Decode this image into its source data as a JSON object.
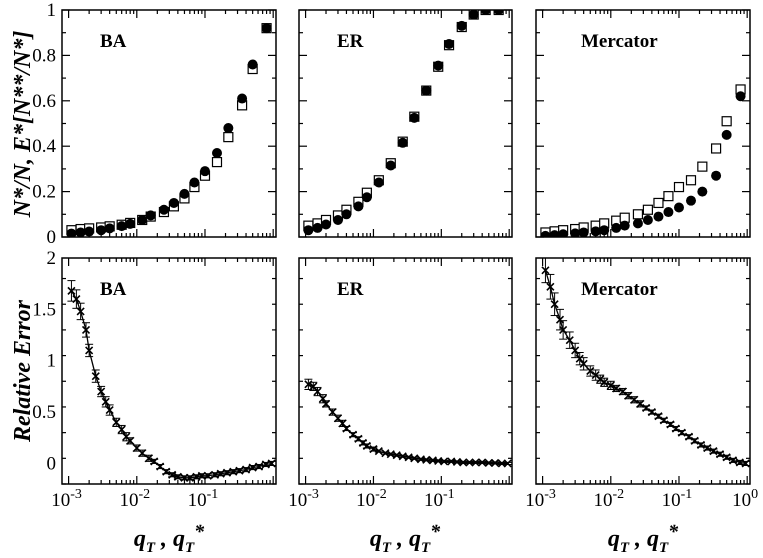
{
  "figure": {
    "xlabel": {
      "base1": "q",
      "sub1": "T",
      "sep": " , ",
      "base2": "q",
      "sub2": "T",
      "sup2": "*"
    },
    "ylabel_top": "N*/N,  E*[N**/N*]",
    "ylabel_bottom": "Relative Error",
    "x_tick_labels": [
      {
        "base": "10",
        "exp": "-3"
      },
      {
        "base": "10",
        "exp": "-2"
      },
      {
        "base": "10",
        "exp": "-1"
      },
      {
        "base": "10",
        "exp": "0"
      }
    ]
  },
  "chart_data": [
    {
      "type": "scatter",
      "panel": "top-BA",
      "title": "BA",
      "xscale": "log",
      "xlim": [
        0.0008,
        1.1
      ],
      "ylim": [
        0,
        1
      ],
      "yticks": [
        0,
        0.2,
        0.4,
        0.6,
        0.8,
        1
      ],
      "ytick_labels": [
        "0",
        "0.2",
        "0.4",
        "0.6",
        "0.8",
        "1"
      ],
      "series": [
        {
          "name": "N*/N",
          "marker": "open-square",
          "x": [
            0.0011,
            0.0015,
            0.002,
            0.003,
            0.004,
            0.006,
            0.008,
            0.012,
            0.016,
            0.025,
            0.035,
            0.05,
            0.07,
            0.1,
            0.15,
            0.22,
            0.35,
            0.5,
            0.8
          ],
          "y": [
            0.03,
            0.035,
            0.038,
            0.042,
            0.047,
            0.054,
            0.062,
            0.075,
            0.09,
            0.11,
            0.135,
            0.17,
            0.22,
            0.27,
            0.33,
            0.44,
            0.58,
            0.74,
            0.92
          ]
        },
        {
          "name": "E*[N**/N*]",
          "marker": "filled-circle",
          "x": [
            0.0011,
            0.0015,
            0.002,
            0.003,
            0.004,
            0.006,
            0.008,
            0.012,
            0.016,
            0.025,
            0.035,
            0.05,
            0.07,
            0.1,
            0.15,
            0.22,
            0.35,
            0.5,
            0.8
          ],
          "y": [
            0.015,
            0.02,
            0.024,
            0.03,
            0.038,
            0.048,
            0.058,
            0.075,
            0.095,
            0.12,
            0.15,
            0.19,
            0.24,
            0.29,
            0.37,
            0.48,
            0.61,
            0.76,
            0.92
          ]
        }
      ]
    },
    {
      "type": "scatter",
      "panel": "top-ER",
      "title": "ER",
      "xscale": "log",
      "xlim": [
        0.0008,
        1.1
      ],
      "ylim": [
        0,
        1
      ],
      "series": [
        {
          "name": "N*/N",
          "marker": "open-square",
          "x": [
            0.0011,
            0.0015,
            0.002,
            0.003,
            0.004,
            0.006,
            0.008,
            0.012,
            0.018,
            0.027,
            0.04,
            0.06,
            0.09,
            0.13,
            0.2,
            0.3,
            0.45,
            0.7
          ],
          "y": [
            0.05,
            0.06,
            0.075,
            0.095,
            0.12,
            0.155,
            0.195,
            0.25,
            0.325,
            0.42,
            0.53,
            0.645,
            0.75,
            0.845,
            0.925,
            0.98,
            1.0,
            1.0
          ]
        },
        {
          "name": "E*[N**/N*]",
          "marker": "filled-circle",
          "x": [
            0.0011,
            0.0015,
            0.002,
            0.003,
            0.004,
            0.006,
            0.008,
            0.012,
            0.018,
            0.027,
            0.04,
            0.06,
            0.09,
            0.13,
            0.2,
            0.3,
            0.45,
            0.7
          ],
          "y": [
            0.03,
            0.04,
            0.055,
            0.075,
            0.1,
            0.135,
            0.175,
            0.24,
            0.315,
            0.415,
            0.525,
            0.645,
            0.755,
            0.85,
            0.93,
            0.98,
            1.0,
            1.0
          ]
        }
      ]
    },
    {
      "type": "scatter",
      "panel": "top-Mercator",
      "title": "Mercator",
      "xscale": "log",
      "xlim": [
        0.0008,
        1.1
      ],
      "ylim": [
        0,
        1
      ],
      "series": [
        {
          "name": "N*/N",
          "marker": "open-square",
          "x": [
            0.0011,
            0.0015,
            0.002,
            0.003,
            0.004,
            0.006,
            0.008,
            0.012,
            0.016,
            0.025,
            0.035,
            0.05,
            0.07,
            0.1,
            0.15,
            0.22,
            0.35,
            0.5,
            0.8
          ],
          "y": [
            0.02,
            0.025,
            0.03,
            0.035,
            0.042,
            0.05,
            0.06,
            0.072,
            0.085,
            0.1,
            0.12,
            0.15,
            0.18,
            0.22,
            0.25,
            0.31,
            0.39,
            0.51,
            0.65
          ]
        },
        {
          "name": "E*[N**/N*]",
          "marker": "filled-circle",
          "x": [
            0.0011,
            0.0015,
            0.002,
            0.003,
            0.004,
            0.006,
            0.008,
            0.012,
            0.016,
            0.025,
            0.035,
            0.05,
            0.07,
            0.1,
            0.15,
            0.22,
            0.35,
            0.5,
            0.8
          ],
          "y": [
            0.005,
            0.008,
            0.012,
            0.016,
            0.02,
            0.025,
            0.03,
            0.04,
            0.05,
            0.06,
            0.075,
            0.09,
            0.11,
            0.13,
            0.16,
            0.2,
            0.27,
            0.45,
            0.62
          ]
        }
      ]
    },
    {
      "type": "line",
      "panel": "bottom-BA",
      "title": "BA",
      "xscale": "log",
      "xlim": [
        0.0008,
        1.1
      ],
      "ylim": [
        -0.2,
        2
      ],
      "yticks": [
        0,
        0.5,
        1,
        1.5,
        2
      ],
      "ytick_labels": [
        "0",
        "0.5",
        "1",
        "1.5",
        "2"
      ],
      "series": [
        {
          "name": "Relative Error",
          "marker": "x",
          "errorbars": true,
          "x": [
            0.0011,
            0.0013,
            0.0015,
            0.0018,
            0.002,
            0.0025,
            0.003,
            0.0035,
            0.004,
            0.005,
            0.006,
            0.007,
            0.008,
            0.01,
            0.012,
            0.015,
            0.018,
            0.022,
            0.027,
            0.033,
            0.04,
            0.05,
            0.06,
            0.075,
            0.09,
            0.11,
            0.14,
            0.17,
            0.21,
            0.26,
            0.32,
            0.4,
            0.5,
            0.62,
            0.78,
            0.95
          ],
          "y": [
            1.68,
            1.6,
            1.48,
            1.3,
            1.1,
            0.85,
            0.7,
            0.6,
            0.52,
            0.4,
            0.33,
            0.26,
            0.22,
            0.15,
            0.1,
            0.05,
            0.02,
            -0.03,
            -0.08,
            -0.11,
            -0.13,
            -0.14,
            -0.14,
            -0.13,
            -0.12,
            -0.12,
            -0.11,
            -0.1,
            -0.09,
            -0.08,
            -0.07,
            -0.06,
            -0.04,
            -0.03,
            -0.01,
            0.0
          ],
          "err": [
            0.1,
            0.09,
            0.08,
            0.07,
            0.06,
            0.06,
            0.05,
            0.05,
            0.05,
            0.04,
            0.04,
            0.04,
            0.03,
            0.03,
            0.03,
            0.03,
            0.02,
            0.02,
            0.02,
            0.02,
            0.02,
            0.02,
            0.02,
            0.02,
            0.02,
            0.02,
            0.02,
            0.02,
            0.02,
            0.02,
            0.02,
            0.02,
            0.02,
            0.02,
            0.02,
            0.02
          ]
        }
      ]
    },
    {
      "type": "line",
      "panel": "bottom-ER",
      "title": "ER",
      "xscale": "log",
      "xlim": [
        0.0008,
        1.1
      ],
      "ylim": [
        -0.2,
        2
      ],
      "series": [
        {
          "name": "Relative Error",
          "marker": "x",
          "errorbars": true,
          "x": [
            0.0011,
            0.0013,
            0.0015,
            0.0018,
            0.002,
            0.0025,
            0.003,
            0.0035,
            0.004,
            0.005,
            0.006,
            0.007,
            0.008,
            0.01,
            0.012,
            0.015,
            0.018,
            0.022,
            0.027,
            0.033,
            0.04,
            0.05,
            0.06,
            0.075,
            0.09,
            0.11,
            0.14,
            0.17,
            0.21,
            0.26,
            0.32,
            0.4,
            0.5,
            0.62,
            0.78,
            0.95
          ],
          "y": [
            0.77,
            0.75,
            0.7,
            0.63,
            0.58,
            0.5,
            0.44,
            0.39,
            0.34,
            0.28,
            0.24,
            0.2,
            0.17,
            0.14,
            0.12,
            0.1,
            0.09,
            0.08,
            0.07,
            0.06,
            0.05,
            0.04,
            0.035,
            0.03,
            0.025,
            0.02,
            0.02,
            0.015,
            0.01,
            0.01,
            0.01,
            0.01,
            0.005,
            0.005,
            0.0,
            0.0
          ],
          "err": [
            0.05,
            0.04,
            0.04,
            0.04,
            0.03,
            0.03,
            0.03,
            0.03,
            0.02,
            0.02,
            0.02,
            0.02,
            0.02,
            0.02,
            0.01,
            0.01,
            0.01,
            0.01,
            0.01,
            0.01,
            0.01,
            0.01,
            0.01,
            0.01,
            0.01,
            0.01,
            0.01,
            0.01,
            0.01,
            0.01,
            0.01,
            0.01,
            0.01,
            0.01,
            0.01,
            0.01
          ]
        }
      ]
    },
    {
      "type": "line",
      "panel": "bottom-Mercator",
      "title": "Mercator",
      "xscale": "log",
      "xlim": [
        0.0008,
        1.1
      ],
      "ylim": [
        -0.2,
        2
      ],
      "series": [
        {
          "name": "Relative Error",
          "marker": "x",
          "errorbars": true,
          "x": [
            0.0011,
            0.0013,
            0.0015,
            0.0018,
            0.002,
            0.0025,
            0.003,
            0.0035,
            0.004,
            0.005,
            0.006,
            0.007,
            0.008,
            0.01,
            0.012,
            0.015,
            0.018,
            0.022,
            0.027,
            0.033,
            0.04,
            0.05,
            0.06,
            0.075,
            0.09,
            0.11,
            0.14,
            0.17,
            0.21,
            0.26,
            0.32,
            0.4,
            0.5,
            0.62,
            0.78,
            0.95
          ],
          "y": [
            1.88,
            1.72,
            1.55,
            1.4,
            1.3,
            1.2,
            1.1,
            1.02,
            0.97,
            0.9,
            0.86,
            0.82,
            0.79,
            0.76,
            0.73,
            0.7,
            0.66,
            0.62,
            0.58,
            0.54,
            0.5,
            0.46,
            0.42,
            0.38,
            0.34,
            0.3,
            0.26,
            0.22,
            0.18,
            0.15,
            0.12,
            0.09,
            0.06,
            0.03,
            0.01,
            0.0
          ],
          "err": [
            0.12,
            0.12,
            0.11,
            0.1,
            0.09,
            0.08,
            0.07,
            0.06,
            0.06,
            0.05,
            0.05,
            0.04,
            0.04,
            0.04,
            0.03,
            0.03,
            0.03,
            0.03,
            0.03,
            0.02,
            0.02,
            0.02,
            0.02,
            0.02,
            0.02,
            0.02,
            0.02,
            0.02,
            0.02,
            0.02,
            0.02,
            0.02,
            0.02,
            0.02,
            0.02,
            0.02
          ]
        }
      ]
    }
  ]
}
